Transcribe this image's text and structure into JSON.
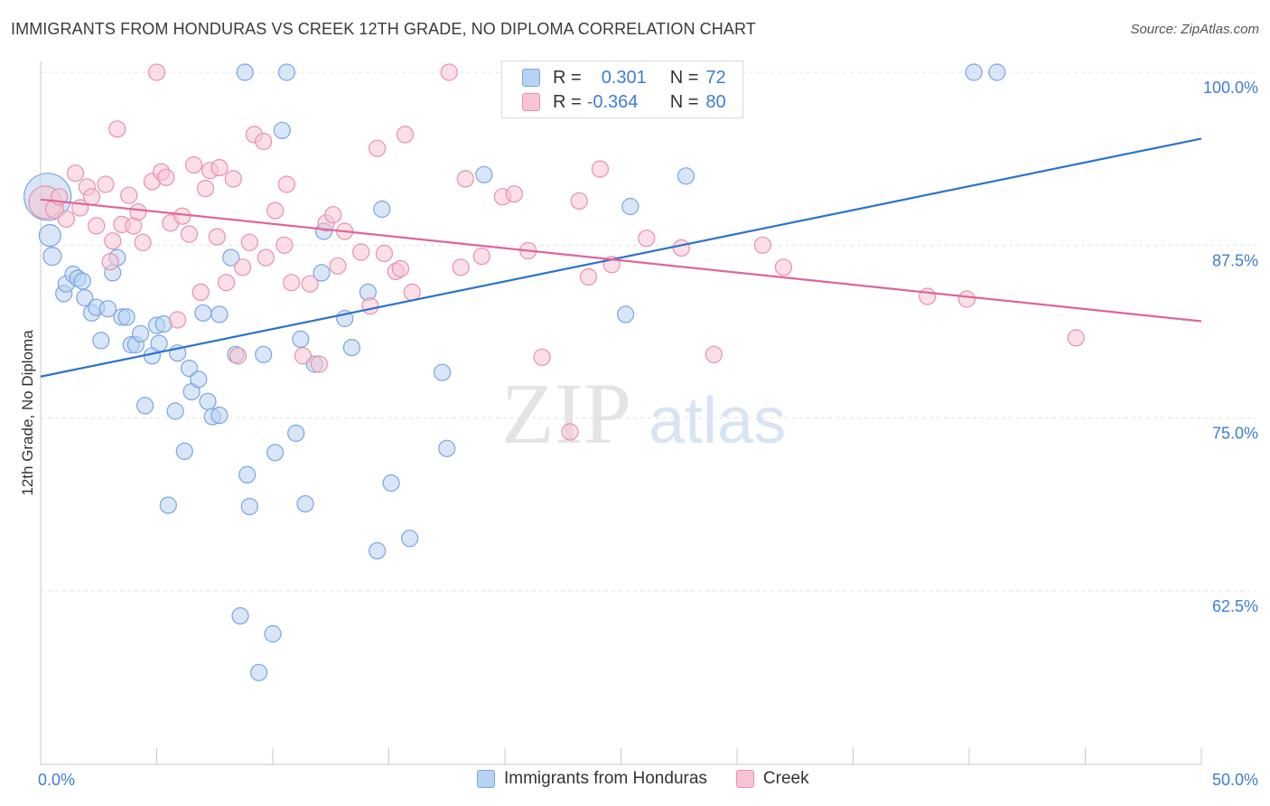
{
  "title": "IMMIGRANTS FROM HONDURAS VS CREEK 12TH GRADE, NO DIPLOMA CORRELATION CHART",
  "source": "Source: ZipAtlas.com",
  "watermark": {
    "zip": "ZIP",
    "atlas": "atlas"
  },
  "legend": {
    "r_label": "R =",
    "n_label": "N =",
    "rows": [
      {
        "r": "0.301",
        "n": "72",
        "fill": "#b8d2f2",
        "stroke": "#7aa5e0"
      },
      {
        "r": "-0.364",
        "n": "80",
        "fill": "#f8c4d4",
        "stroke": "#e890ad"
      }
    ]
  },
  "chart_data": {
    "type": "scatter",
    "title": "IMMIGRANTS FROM HONDURAS VS CREEK 12TH GRADE, NO DIPLOMA CORRELATION CHART",
    "xlabel": "",
    "ylabel": "12th Grade, No Diploma",
    "xlim": [
      0,
      50
    ],
    "ylim": [
      52,
      101
    ],
    "x_tick_labels": [
      "0.0%",
      "50.0%"
    ],
    "y_ticks": [
      62.5,
      75.0,
      87.5,
      100.0
    ],
    "y_tick_labels": [
      "62.5%",
      "75.0%",
      "87.5%",
      "100.0%"
    ],
    "grid": true,
    "legend_position": "bottom-center",
    "series": [
      {
        "name": "Immigrants from Honduras",
        "color": "#7aa5e0",
        "fill": "#b8d2f2",
        "trend": {
          "x": [
            0,
            50
          ],
          "y": [
            78.0,
            95.2
          ],
          "color": "#2c72cc"
        },
        "points": [
          [
            0.3,
            91.0,
            26
          ],
          [
            0.4,
            88.2,
            12
          ],
          [
            0.5,
            86.7,
            10
          ],
          [
            1.0,
            84.0,
            9
          ],
          [
            1.1,
            84.7,
            9
          ],
          [
            1.4,
            85.4,
            9
          ],
          [
            1.6,
            85.1,
            9
          ],
          [
            1.8,
            84.9,
            9
          ],
          [
            1.9,
            83.7,
            9
          ],
          [
            2.2,
            82.6,
            9
          ],
          [
            2.4,
            83.0,
            9
          ],
          [
            2.6,
            80.6,
            9
          ],
          [
            2.9,
            82.9,
            9
          ],
          [
            3.1,
            85.5,
            9
          ],
          [
            3.3,
            86.6,
            9
          ],
          [
            3.5,
            82.3,
            9
          ],
          [
            3.7,
            82.3,
            9
          ],
          [
            3.9,
            80.3,
            9
          ],
          [
            4.1,
            80.3,
            9
          ],
          [
            4.3,
            81.1,
            9
          ],
          [
            4.5,
            75.9,
            9
          ],
          [
            4.8,
            79.5,
            9
          ],
          [
            5.0,
            81.7,
            9
          ],
          [
            5.1,
            80.4,
            9
          ],
          [
            5.3,
            81.8,
            9
          ],
          [
            5.5,
            68.7,
            9
          ],
          [
            5.8,
            75.5,
            9
          ],
          [
            5.9,
            79.7,
            9
          ],
          [
            6.2,
            72.6,
            9
          ],
          [
            6.4,
            78.6,
            9
          ],
          [
            6.5,
            76.9,
            9
          ],
          [
            6.8,
            77.8,
            9
          ],
          [
            7.0,
            82.6,
            9
          ],
          [
            7.2,
            76.2,
            9
          ],
          [
            7.4,
            75.1,
            9
          ],
          [
            7.7,
            75.2,
            9
          ],
          [
            7.7,
            82.5,
            9
          ],
          [
            8.2,
            86.6,
            9
          ],
          [
            8.4,
            79.6,
            9
          ],
          [
            8.6,
            60.7,
            9
          ],
          [
            8.8,
            100.0,
            9
          ],
          [
            8.9,
            70.9,
            9
          ],
          [
            9.0,
            68.6,
            9
          ],
          [
            9.4,
            56.6,
            9
          ],
          [
            9.6,
            79.6,
            9
          ],
          [
            10.0,
            59.4,
            9
          ],
          [
            10.1,
            72.5,
            9
          ],
          [
            10.4,
            95.8,
            9
          ],
          [
            10.6,
            100.0,
            9
          ],
          [
            11.0,
            73.9,
            9
          ],
          [
            11.2,
            80.7,
            9
          ],
          [
            11.4,
            68.8,
            9
          ],
          [
            11.8,
            78.9,
            9
          ],
          [
            12.1,
            85.5,
            9
          ],
          [
            12.2,
            88.5,
            9
          ],
          [
            13.1,
            82.2,
            9
          ],
          [
            13.4,
            80.1,
            9
          ],
          [
            14.1,
            84.1,
            9
          ],
          [
            14.5,
            65.4,
            9
          ],
          [
            14.7,
            90.1,
            9
          ],
          [
            15.1,
            70.3,
            9
          ],
          [
            15.9,
            66.3,
            9
          ],
          [
            17.3,
            78.3,
            9
          ],
          [
            17.5,
            72.8,
            9
          ],
          [
            19.1,
            92.6,
            9
          ],
          [
            24.2,
            100.0,
            9
          ],
          [
            25.2,
            82.5,
            9
          ],
          [
            25.4,
            90.3,
            9
          ],
          [
            27.4,
            100.0,
            9
          ],
          [
            27.8,
            92.5,
            9
          ],
          [
            40.2,
            100.0,
            9
          ],
          [
            41.2,
            100.0,
            9
          ]
        ]
      },
      {
        "name": "Creek",
        "color": "#e890ad",
        "fill": "#f8c4d4",
        "trend": {
          "x": [
            0,
            50
          ],
          "y": [
            90.8,
            82.0
          ],
          "color": "#e0649a"
        },
        "points": [
          [
            0.2,
            90.6,
            18
          ],
          [
            0.6,
            90.1,
            10
          ],
          [
            0.8,
            91.0,
            9
          ],
          [
            1.1,
            89.4,
            9
          ],
          [
            1.5,
            92.7,
            9
          ],
          [
            1.7,
            90.2,
            9
          ],
          [
            2.0,
            91.7,
            9
          ],
          [
            2.2,
            91.0,
            9
          ],
          [
            2.4,
            88.9,
            9
          ],
          [
            2.8,
            91.9,
            9
          ],
          [
            3.0,
            86.3,
            9
          ],
          [
            3.1,
            87.8,
            9
          ],
          [
            3.3,
            95.9,
            9
          ],
          [
            3.5,
            89.0,
            9
          ],
          [
            3.8,
            91.1,
            9
          ],
          [
            4.0,
            88.9,
            9
          ],
          [
            4.2,
            89.9,
            9
          ],
          [
            4.4,
            87.7,
            9
          ],
          [
            4.8,
            92.1,
            9
          ],
          [
            5.0,
            100.0,
            9
          ],
          [
            5.2,
            92.8,
            9
          ],
          [
            5.4,
            92.4,
            9
          ],
          [
            5.6,
            89.1,
            9
          ],
          [
            5.9,
            82.1,
            9
          ],
          [
            6.1,
            89.6,
            9
          ],
          [
            6.4,
            88.3,
            9
          ],
          [
            6.6,
            93.3,
            9
          ],
          [
            6.9,
            84.1,
            9
          ],
          [
            7.1,
            91.6,
            9
          ],
          [
            7.3,
            92.9,
            9
          ],
          [
            7.6,
            88.1,
            9
          ],
          [
            7.7,
            93.1,
            9
          ],
          [
            8.0,
            84.8,
            9
          ],
          [
            8.3,
            92.3,
            9
          ],
          [
            8.5,
            79.5,
            9
          ],
          [
            8.7,
            85.9,
            9
          ],
          [
            9.0,
            87.7,
            9
          ],
          [
            9.2,
            95.5,
            9
          ],
          [
            9.6,
            95.0,
            9
          ],
          [
            9.7,
            86.6,
            9
          ],
          [
            10.1,
            90.0,
            9
          ],
          [
            10.5,
            87.5,
            9
          ],
          [
            10.6,
            91.9,
            9
          ],
          [
            10.8,
            84.8,
            9
          ],
          [
            11.3,
            79.5,
            9
          ],
          [
            11.6,
            84.7,
            9
          ],
          [
            12.3,
            89.1,
            9
          ],
          [
            12.6,
            89.7,
            9
          ],
          [
            12.8,
            86.0,
            9
          ],
          [
            13.1,
            88.5,
            9
          ],
          [
            13.8,
            87.0,
            9
          ],
          [
            14.2,
            83.1,
            9
          ],
          [
            14.5,
            94.5,
            9
          ],
          [
            14.8,
            86.9,
            9
          ],
          [
            15.3,
            85.6,
            9
          ],
          [
            15.5,
            85.8,
            9
          ],
          [
            15.7,
            95.5,
            9
          ],
          [
            16.0,
            84.1,
            9
          ],
          [
            17.6,
            100.0,
            9
          ],
          [
            18.1,
            85.9,
            9
          ],
          [
            18.3,
            92.3,
            9
          ],
          [
            19.0,
            86.7,
            9
          ],
          [
            19.9,
            91.0,
            9
          ],
          [
            21.0,
            87.1,
            9
          ],
          [
            21.6,
            79.4,
            9
          ],
          [
            22.8,
            74.0,
            9
          ],
          [
            23.2,
            90.7,
            9
          ],
          [
            23.6,
            85.2,
            9
          ],
          [
            24.1,
            93.0,
            9
          ],
          [
            24.6,
            86.1,
            9
          ],
          [
            27.6,
            87.3,
            9
          ],
          [
            29.0,
            79.6,
            9
          ],
          [
            31.1,
            87.5,
            9
          ],
          [
            32.0,
            85.9,
            9
          ],
          [
            38.2,
            83.8,
            9
          ],
          [
            39.9,
            83.6,
            9
          ],
          [
            44.6,
            80.8,
            9
          ],
          [
            20.4,
            91.2,
            9
          ],
          [
            26.1,
            88.0,
            9
          ],
          [
            12.0,
            78.9,
            9
          ]
        ]
      }
    ]
  }
}
